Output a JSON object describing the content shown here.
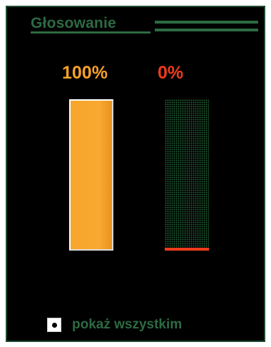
{
  "poll": {
    "title": "Głosowanie",
    "results": [
      {
        "label": "100%",
        "value": 1.0,
        "color": "#f7a12a"
      },
      {
        "label": "0%",
        "value": 0.0,
        "color": "#ee3b1c"
      }
    ],
    "show_all_label": "pokaż wszystkim",
    "show_all_checked": true
  },
  "colors": {
    "background": "#000000",
    "accent_green": "#2d6a42",
    "bar_yes": "#f7a12a",
    "bar_no": "#ee3b1c"
  }
}
